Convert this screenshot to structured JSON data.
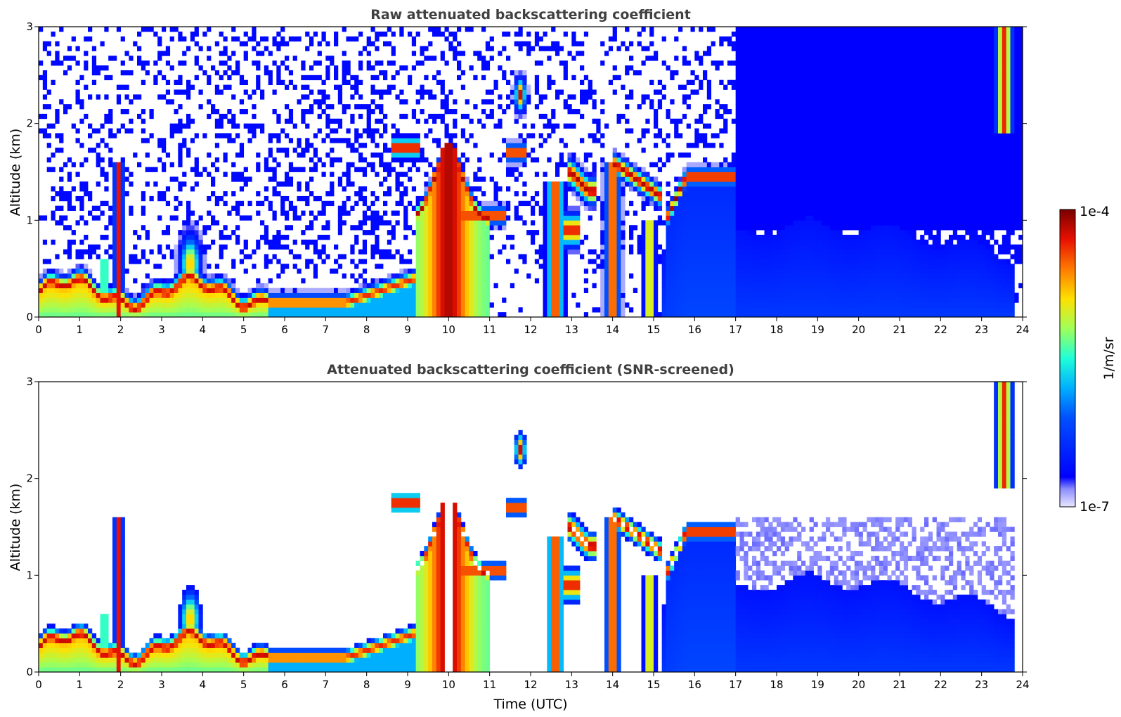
{
  "chart_data": [
    {
      "type": "heatmap",
      "title": "Raw attenuated backscattering coefficient",
      "xlabel": "",
      "ylabel": "Altitude (km)",
      "xlim": [
        0,
        24
      ],
      "ylim": [
        0,
        3
      ],
      "x_ticks": [
        "0",
        "1",
        "2",
        "3",
        "4",
        "5",
        "6",
        "7",
        "8",
        "9",
        "10",
        "11",
        "12",
        "13",
        "14",
        "15",
        "16",
        "17",
        "18",
        "19",
        "20",
        "21",
        "22",
        "23",
        "24"
      ],
      "y_ticks": [
        "0",
        "1",
        "2",
        "3"
      ],
      "screened": false,
      "features": [
        {
          "name": "boundary layer aerosol",
          "x": [
            0,
            5.6
          ],
          "y": [
            0.1,
            0.4
          ]
        },
        {
          "name": "thick cloud",
          "x": [
            9.2,
            11.0
          ],
          "y": [
            0,
            1.9
          ]
        },
        {
          "name": "cloud layer",
          "x": [
            15.4,
            17.0
          ],
          "y": [
            1.4,
            1.6
          ]
        },
        {
          "name": "cirrus",
          "x": [
            23.3,
            23.8
          ],
          "y": [
            1.9,
            3.0
          ]
        }
      ]
    },
    {
      "type": "heatmap",
      "title": "Attenuated backscattering coefficient (SNR-screened)",
      "xlabel": "Time (UTC)",
      "ylabel": "Altitude (km)",
      "xlim": [
        0,
        24
      ],
      "ylim": [
        0,
        3
      ],
      "x_ticks": [
        "0",
        "1",
        "2",
        "3",
        "4",
        "5",
        "6",
        "7",
        "8",
        "9",
        "10",
        "11",
        "12",
        "13",
        "14",
        "15",
        "16",
        "17",
        "18",
        "19",
        "20",
        "21",
        "22",
        "23",
        "24"
      ],
      "y_ticks": [
        "0",
        "1",
        "2",
        "3"
      ],
      "screened": true,
      "features": [
        {
          "name": "boundary layer aerosol",
          "x": [
            0,
            5.6
          ],
          "y": [
            0.1,
            0.4
          ]
        },
        {
          "name": "thick cloud",
          "x": [
            9.2,
            11.0
          ],
          "y": [
            0,
            1.9
          ]
        },
        {
          "name": "cloud layer",
          "x": [
            15.4,
            17.0
          ],
          "y": [
            1.4,
            1.6
          ]
        },
        {
          "name": "cirrus",
          "x": [
            23.3,
            23.8
          ],
          "y": [
            1.9,
            3.0
          ]
        }
      ]
    }
  ],
  "colorbar": {
    "max_label": "1e-4",
    "min_label": "1e-7",
    "unit_label": "1/m/sr",
    "colormap": "jet",
    "scale": "log",
    "range": [
      1e-07,
      0.0001
    ]
  }
}
